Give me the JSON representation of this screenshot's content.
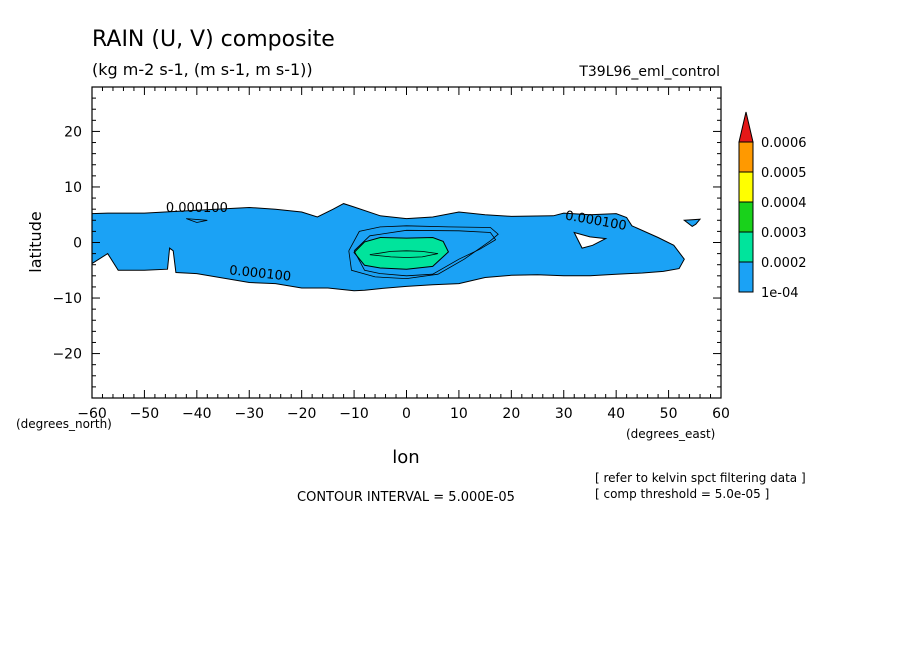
{
  "chart_data": {
    "type": "contour",
    "title": "RAIN (U, V) composite",
    "subtitle": "(kg m-2 s-1, (m s-1, m s-1))",
    "run_label": "T39L96_eml_control",
    "xlabel": "lon",
    "ylabel": "latitude",
    "x_units": "(degrees_east)",
    "y_units": "(degrees_north)",
    "xlim": [
      -60,
      60
    ],
    "ylim": [
      -28,
      28
    ],
    "x_ticks": [
      -60,
      -50,
      -40,
      -30,
      -20,
      -10,
      0,
      10,
      20,
      30,
      40,
      50,
      60
    ],
    "y_ticks": [
      -20,
      -10,
      0,
      10,
      20
    ],
    "contour_interval_text": "CONTOUR INTERVAL = 5.000E-05",
    "notes": [
      "[ refer to kelvin spct filtering data ]",
      "[ comp threshold = 5.0e-05 ]"
    ],
    "contour_labels": [
      {
        "text": "0.000100",
        "x": -40,
        "y": 5.5
      },
      {
        "text": "0.000100",
        "x": -28,
        "y": -6.3
      },
      {
        "text": "0.000100",
        "x": 36,
        "y": 3.2
      }
    ],
    "colorbar": {
      "levels": [
        "1e-04",
        "0.0002",
        "0.0003",
        "0.0004",
        "0.0005",
        "0.0006"
      ],
      "colors": [
        "#1ba2f5",
        "#00e49c",
        "#19d21b",
        "#ffff00",
        "#ff9900",
        "#e51818"
      ]
    },
    "regions": [
      {
        "level": "1e-04",
        "color": "#1ba2f5",
        "polygon": [
          [
            -60,
            5.2
          ],
          [
            -57,
            5.3
          ],
          [
            -50,
            5.3
          ],
          [
            -40,
            5.8
          ],
          [
            -30,
            6.3
          ],
          [
            -25,
            6.0
          ],
          [
            -20,
            5.5
          ],
          [
            -17,
            4.6
          ],
          [
            -14,
            6.0
          ],
          [
            -12,
            7.0
          ],
          [
            -10,
            6.4
          ],
          [
            -5,
            4.8
          ],
          [
            0,
            4.3
          ],
          [
            5,
            4.6
          ],
          [
            10,
            5.5
          ],
          [
            15,
            5.0
          ],
          [
            20,
            4.7
          ],
          [
            28,
            4.8
          ],
          [
            30,
            5.3
          ],
          [
            35,
            5.0
          ],
          [
            40,
            5.2
          ],
          [
            42,
            4.5
          ],
          [
            43,
            3.0
          ],
          [
            48,
            0.9
          ],
          [
            51,
            -0.5
          ],
          [
            53,
            -3.0
          ],
          [
            52,
            -4.7
          ],
          [
            49,
            -5.2
          ],
          [
            45,
            -5.5
          ],
          [
            40,
            -5.7
          ],
          [
            35,
            -6.0
          ],
          [
            30,
            -6.0
          ],
          [
            25,
            -5.8
          ],
          [
            20,
            -5.9
          ],
          [
            15,
            -6.3
          ],
          [
            10,
            -7.4
          ],
          [
            5,
            -7.6
          ],
          [
            0,
            -7.9
          ],
          [
            -5,
            -8.3
          ],
          [
            -8,
            -8.6
          ],
          [
            -10,
            -8.7
          ],
          [
            -15,
            -8.2
          ],
          [
            -20,
            -8.2
          ],
          [
            -25,
            -7.4
          ],
          [
            -30,
            -7.2
          ],
          [
            -40,
            -5.6
          ],
          [
            -44,
            -5.4
          ],
          [
            -44.5,
            -1.5
          ],
          [
            -45.2,
            -1.0
          ],
          [
            -45.6,
            -4.8
          ],
          [
            -50,
            -5.0
          ],
          [
            -55,
            -5.0
          ],
          [
            -57,
            -2.0
          ],
          [
            -60,
            -3.8
          ]
        ]
      },
      {
        "level": "0.0003",
        "color": "#00e49c",
        "polygon": [
          [
            -10,
            -1.8
          ],
          [
            -8,
            0.1
          ],
          [
            -5,
            0.9
          ],
          [
            0,
            0.8
          ],
          [
            5,
            0.9
          ],
          [
            7,
            0.2
          ],
          [
            8,
            -1.7
          ],
          [
            5,
            -4.3
          ],
          [
            0,
            -4.8
          ],
          [
            -5,
            -4.6
          ],
          [
            -8,
            -4.1
          ]
        ]
      },
      {
        "level": "none",
        "color": "#ffffff",
        "polygon": [
          [
            32,
            1.8
          ],
          [
            35,
            1.0
          ],
          [
            38,
            0.7
          ],
          [
            35.5,
            -0.5
          ],
          [
            33.5,
            -1.0
          ]
        ]
      },
      {
        "level": "1e-04",
        "color": "#1ba2f5",
        "polygon": [
          [
            53,
            4.0
          ],
          [
            56,
            4.2
          ],
          [
            55.2,
            3.3
          ],
          [
            54.5,
            2.9
          ]
        ]
      }
    ],
    "contour_lines": [
      {
        "points": [
          [
            -10,
            -1.5
          ],
          [
            -7,
            1.2
          ],
          [
            0,
            2.2
          ],
          [
            10,
            2.1
          ],
          [
            16,
            1.8
          ],
          [
            17,
            0.5
          ],
          [
            14,
            -1.2
          ],
          [
            10,
            -3.0
          ],
          [
            5,
            -5.7
          ],
          [
            0,
            -6.0
          ],
          [
            -5,
            -5.6
          ],
          [
            -8,
            -5.0
          ],
          [
            -10,
            -1.5
          ]
        ]
      },
      {
        "points": [
          [
            -11,
            -1.5
          ],
          [
            -9,
            2.0
          ],
          [
            -5,
            2.8
          ],
          [
            0,
            3.0
          ],
          [
            8,
            2.8
          ],
          [
            16,
            2.7
          ],
          [
            17.5,
            1.5
          ],
          [
            16,
            0.3
          ],
          [
            11,
            -3.0
          ],
          [
            6,
            -5.7
          ],
          [
            0,
            -6.5
          ],
          [
            -6,
            -6.2
          ],
          [
            -10.5,
            -5.0
          ],
          [
            -11,
            -1.5
          ]
        ]
      },
      {
        "points": [
          [
            -7,
            -2.2
          ],
          [
            -3,
            -1.6
          ],
          [
            0,
            -1.5
          ],
          [
            3,
            -1.6
          ],
          [
            6,
            -2.0
          ],
          [
            3,
            -2.6
          ],
          [
            0,
            -2.7
          ],
          [
            -3,
            -2.6
          ],
          [
            -7,
            -2.2
          ]
        ]
      },
      {
        "points": [
          [
            -42,
            4.3
          ],
          [
            -38,
            4.0
          ],
          [
            -40,
            3.6
          ],
          [
            -42,
            4.3
          ]
        ]
      }
    ]
  }
}
